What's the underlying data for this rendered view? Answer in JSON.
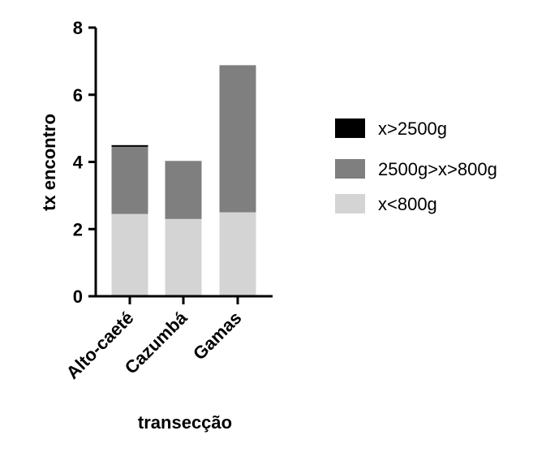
{
  "chart_data": {
    "type": "bar",
    "stacked": true,
    "categories": [
      "Alto-caeté",
      "Cazumbá",
      "Gamas"
    ],
    "series": [
      {
        "name": "x<800g",
        "values": [
          2.45,
          2.3,
          2.5
        ],
        "color": "#d4d4d4"
      },
      {
        "name": "2500g>x>800g",
        "values": [
          2.0,
          1.73,
          4.38
        ],
        "color": "#7f7f7f"
      },
      {
        "name": "x>2500g",
        "values": [
          0.05,
          0.0,
          0.0
        ],
        "color": "#000000"
      }
    ],
    "legend_order": [
      "x>2500g",
      "2500g>x>800g",
      "x<800g"
    ],
    "title": "",
    "xlabel": "transecção",
    "ylabel": "tx encontro",
    "ylim": [
      0,
      8
    ],
    "yticks": [
      0,
      2,
      4,
      6,
      8
    ],
    "grid": false,
    "legend_position": "right"
  }
}
